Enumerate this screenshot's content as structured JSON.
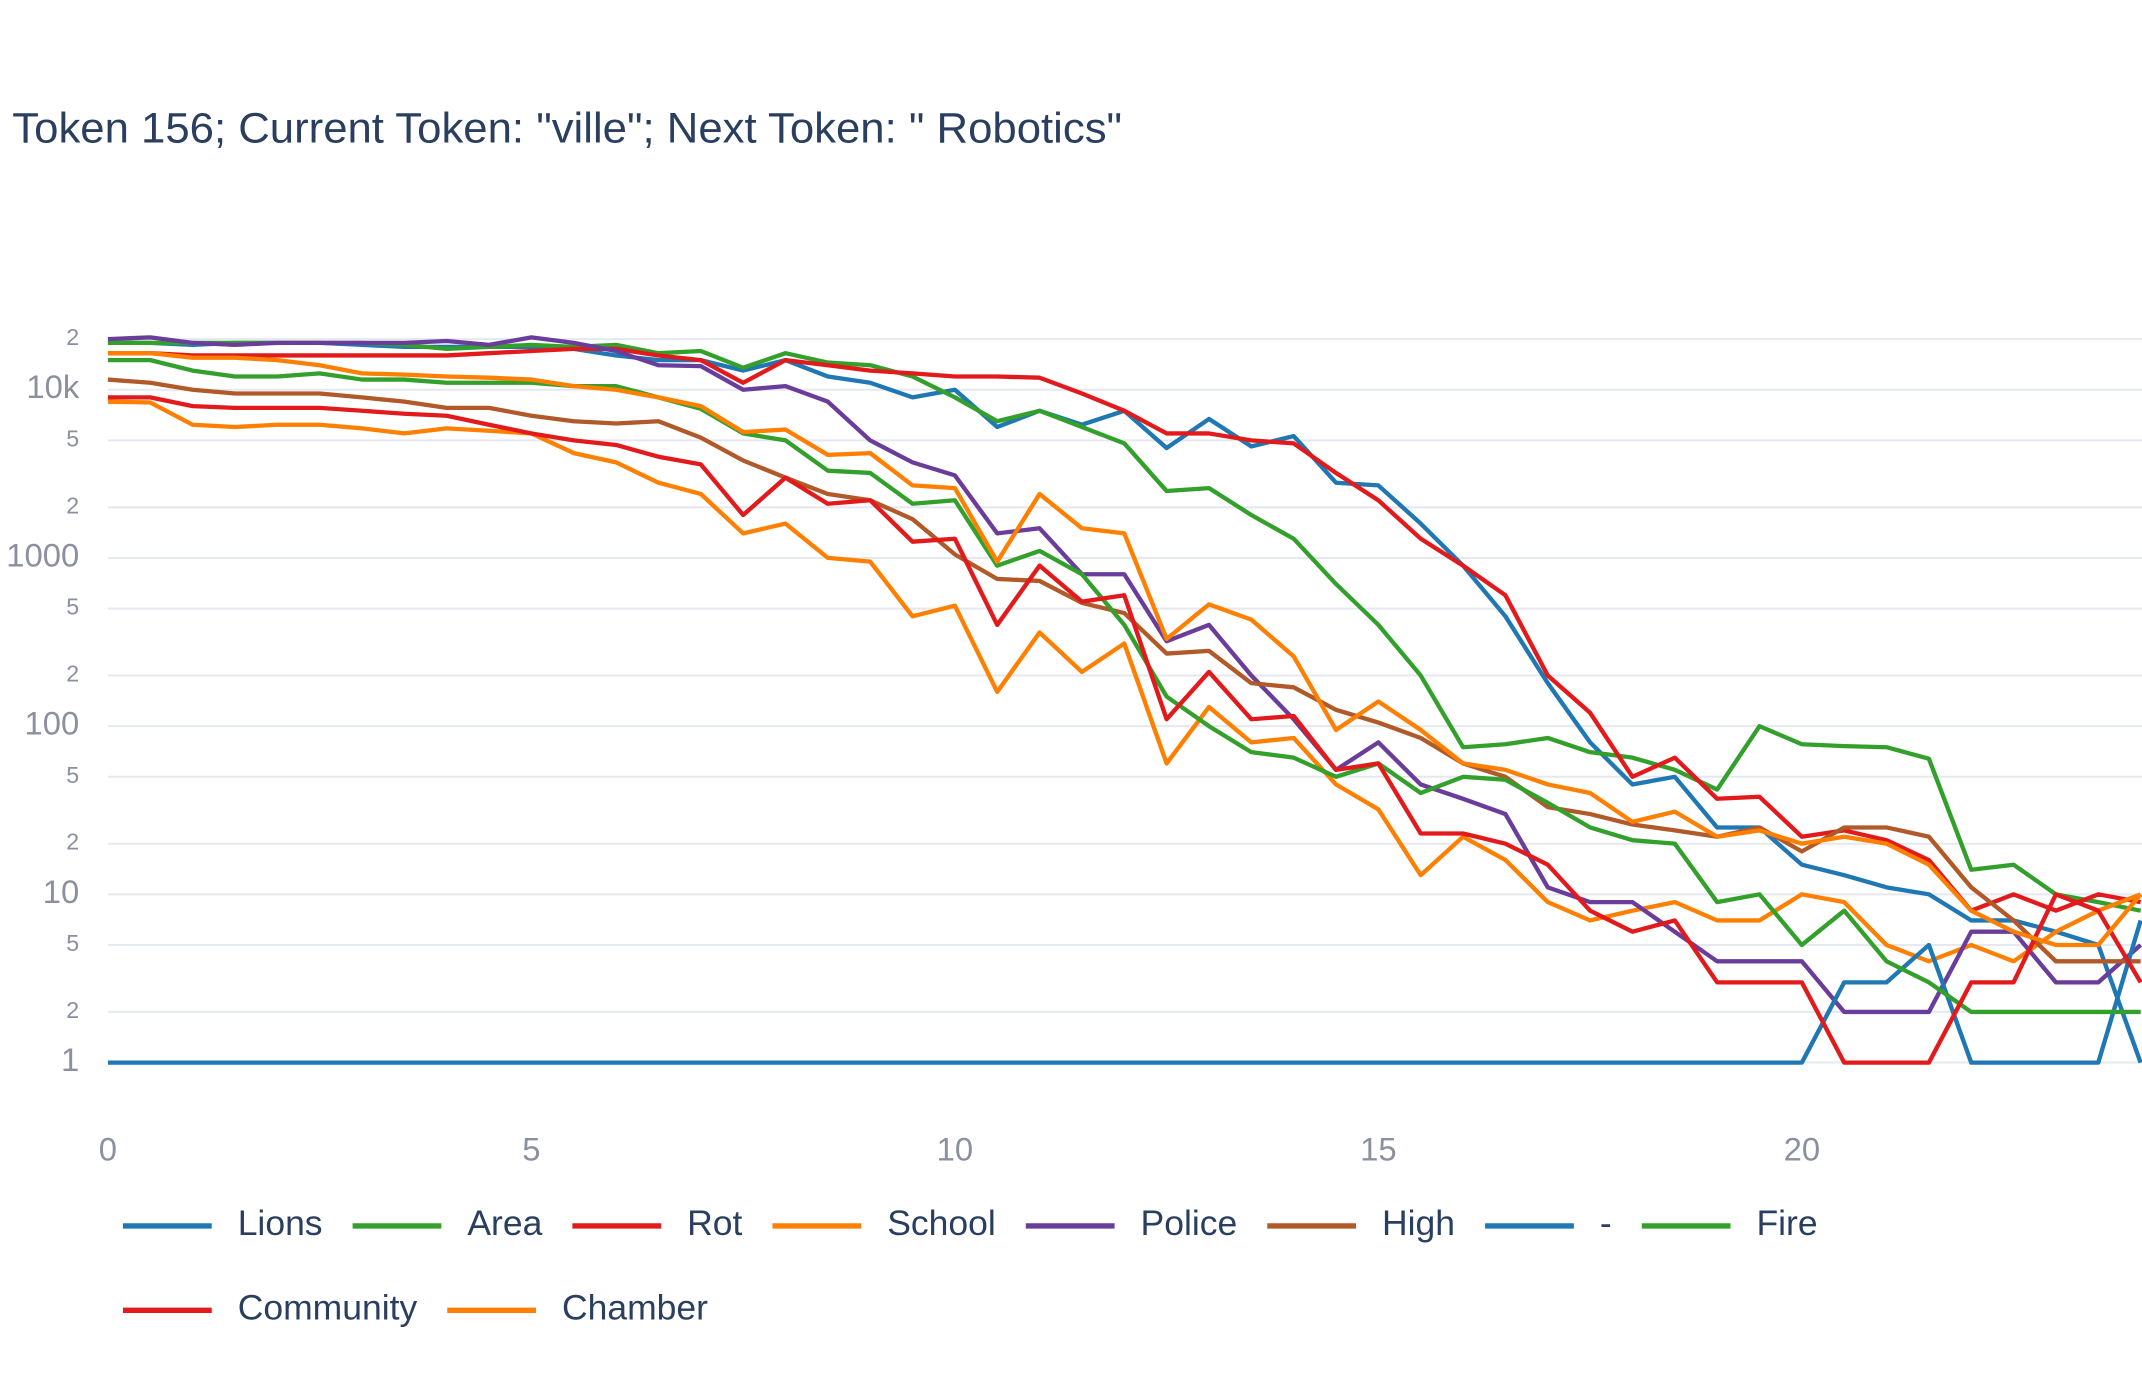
{
  "chart_data": {
    "type": "line",
    "title": "Token 156; Current Token: \"ville\"; Next Token: \" Robotics\"",
    "log_y": true,
    "grid": true,
    "legend": "bottom",
    "xlim": [
      0,
      24
    ],
    "xticks": [
      0,
      5,
      10,
      15,
      20
    ],
    "ylim": [
      0.7,
      30000
    ],
    "yticks": [
      1,
      2,
      5,
      10,
      {
        "value": 20,
        "label": "2"
      },
      {
        "value": 50,
        "label": "5"
      },
      100,
      {
        "value": 200,
        "label": "2"
      },
      {
        "value": 500,
        "label": "5"
      },
      1000,
      {
        "value": 2000,
        "label": "2"
      },
      {
        "value": 5000,
        "label": "5"
      },
      {
        "value": 10000,
        "label": "10k"
      },
      {
        "value": 20000,
        "label": "2"
      }
    ],
    "x": [
      0,
      0.5,
      1,
      1.5,
      2,
      2.5,
      3,
      3.5,
      4,
      4.5,
      5,
      5.5,
      6,
      6.5,
      7,
      7.5,
      8,
      8.5,
      9,
      9.5,
      10,
      10.5,
      11,
      11.5,
      12,
      12.5,
      13,
      13.5,
      14,
      14.5,
      15,
      15.5,
      16,
      16.5,
      17,
      17.5,
      18,
      18.5,
      19,
      19.5,
      20,
      20.5,
      21,
      21.5,
      22,
      22.5,
      23,
      23.5,
      24
    ],
    "series": [
      {
        "name": "Lions",
        "color": "#1f78b4",
        "values": [
          19000,
          19000,
          18500,
          19000,
          19000,
          19000,
          18500,
          18000,
          18000,
          18000,
          18000,
          17500,
          16000,
          15000,
          15000,
          13000,
          15000,
          12000,
          11000,
          9000,
          10000,
          6000,
          7500,
          6200,
          7500,
          4500,
          6700,
          4600,
          5300,
          2800,
          2700,
          1600,
          900,
          450,
          180,
          80,
          45,
          50,
          25,
          25,
          15,
          13,
          11,
          10,
          7,
          7,
          6,
          5,
          1
        ]
      },
      {
        "name": "Area",
        "color": "#33a02c",
        "values": [
          19000,
          19000,
          19000,
          19000,
          19000,
          19000,
          19000,
          18500,
          17500,
          18000,
          18500,
          18000,
          18500,
          16500,
          17000,
          13500,
          16500,
          14500,
          14000,
          12000,
          9000,
          6500,
          7500,
          6000,
          4800,
          2500,
          2600,
          1800,
          1300,
          700,
          400,
          200,
          75,
          78,
          85,
          70,
          65,
          55,
          42,
          100,
          78,
          76,
          75,
          64,
          14,
          15,
          10,
          9,
          8
        ]
      },
      {
        "name": "Rot",
        "color": "#e31a1c",
        "values": [
          16500,
          16500,
          16000,
          16000,
          16000,
          16000,
          16000,
          16000,
          16000,
          16500,
          17000,
          17500,
          17500,
          16000,
          15000,
          11000,
          15000,
          14000,
          13000,
          12500,
          12000,
          12000,
          11800,
          9500,
          7500,
          5500,
          5500,
          5000,
          4800,
          3200,
          2200,
          1300,
          900,
          600,
          200,
          120,
          50,
          65,
          37,
          38,
          22,
          24,
          21,
          16,
          8,
          10,
          8,
          10,
          9
        ]
      },
      {
        "name": "School",
        "color": "#ff7f00",
        "values": [
          8500,
          8400,
          6200,
          6000,
          6200,
          6200,
          5900,
          5500,
          5900,
          5700,
          5500,
          4200,
          3700,
          2800,
          2400,
          1400,
          1600,
          1000,
          950,
          450,
          520,
          160,
          360,
          210,
          310,
          60,
          130,
          80,
          85,
          45,
          32,
          13,
          22,
          16,
          9,
          7,
          8,
          9,
          7,
          7,
          10,
          9,
          5,
          4,
          5,
          4,
          6,
          8,
          10
        ]
      },
      {
        "name": "Police",
        "color": "#6a3d9a",
        "values": [
          20000,
          20500,
          19000,
          18500,
          19000,
          19000,
          19000,
          19000,
          19500,
          18500,
          20500,
          19000,
          17000,
          14000,
          13800,
          10000,
          10500,
          8500,
          5000,
          3700,
          3100,
          1400,
          1500,
          800,
          800,
          320,
          400,
          200,
          110,
          55,
          80,
          45,
          37,
          30,
          11,
          9,
          9,
          6,
          4,
          4,
          4,
          2,
          2,
          2,
          6,
          6,
          3,
          3,
          5
        ]
      },
      {
        "name": "High",
        "color": "#b15928",
        "values": [
          11500,
          11000,
          10000,
          9500,
          9500,
          9500,
          9000,
          8500,
          7800,
          7800,
          7000,
          6500,
          6300,
          6500,
          5200,
          3800,
          3000,
          2400,
          2200,
          1700,
          1050,
          750,
          730,
          540,
          470,
          270,
          280,
          180,
          170,
          125,
          105,
          85,
          60,
          50,
          33,
          30,
          26,
          24,
          22,
          25,
          18,
          25,
          25,
          22,
          11,
          7,
          4,
          4,
          4
        ]
      },
      {
        "name": "-",
        "color": "#1f78b4",
        "values": [
          1,
          1,
          1,
          1,
          1,
          1,
          1,
          1,
          1,
          1,
          1,
          1,
          1,
          1,
          1,
          1,
          1,
          1,
          1,
          1,
          1,
          1,
          1,
          1,
          1,
          1,
          1,
          1,
          1,
          1,
          1,
          1,
          1,
          1,
          1,
          1,
          1,
          1,
          1,
          1,
          1,
          3,
          3,
          5,
          1,
          1,
          1,
          1,
          7
        ]
      },
      {
        "name": "Fire",
        "color": "#33a02c",
        "values": [
          15000,
          15000,
          13000,
          12000,
          12000,
          12500,
          11500,
          11500,
          11000,
          11000,
          11000,
          10500,
          10500,
          9000,
          7700,
          5500,
          5000,
          3300,
          3200,
          2100,
          2200,
          900,
          1100,
          800,
          400,
          150,
          100,
          70,
          65,
          50,
          60,
          40,
          50,
          48,
          35,
          25,
          21,
          20,
          9,
          10,
          5,
          8,
          4,
          3,
          2,
          2,
          2,
          2,
          2
        ]
      },
      {
        "name": "Community",
        "color": "#e31a1c",
        "values": [
          9000,
          9000,
          8000,
          7800,
          7800,
          7800,
          7500,
          7200,
          7000,
          6200,
          5500,
          5000,
          4700,
          4000,
          3600,
          1800,
          3000,
          2100,
          2200,
          1250,
          1300,
          400,
          900,
          550,
          600,
          110,
          210,
          110,
          115,
          55,
          60,
          23,
          23,
          20,
          15,
          8,
          6,
          7,
          3,
          3,
          3,
          1,
          1,
          1,
          3,
          3,
          10,
          8,
          3
        ]
      },
      {
        "name": "Chamber",
        "color": "#ff7f00",
        "values": [
          16500,
          16500,
          15500,
          15500,
          15000,
          14000,
          12500,
          12300,
          12000,
          11800,
          11500,
          10500,
          10000,
          9000,
          8000,
          5600,
          5800,
          4100,
          4200,
          2700,
          2600,
          950,
          2400,
          1500,
          1400,
          330,
          530,
          430,
          260,
          95,
          140,
          95,
          60,
          55,
          45,
          40,
          27,
          31,
          22,
          24,
          20,
          22,
          20,
          15,
          8,
          6,
          5,
          5,
          10
        ]
      }
    ]
  }
}
